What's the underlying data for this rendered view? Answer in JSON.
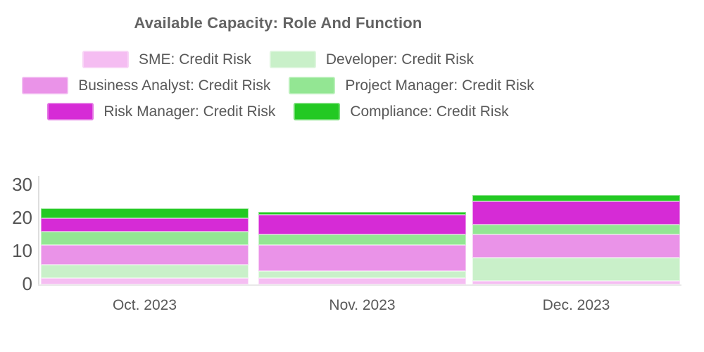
{
  "title": "Available Capacity: Role And Function",
  "text_colors": {
    "title": "#646464",
    "legend": "#585858",
    "axis": "#545454"
  },
  "chart_data": {
    "type": "bar",
    "stacked": true,
    "title": "Available Capacity: Role And Function",
    "categories": [
      "Oct. 2023",
      "Nov. 2023",
      "Dec. 2023"
    ],
    "series": [
      {
        "name": "SME: Credit Risk",
        "color": "#F5BDF2",
        "values": [
          2,
          2,
          1
        ]
      },
      {
        "name": "Developer: Credit Risk",
        "color": "#C9F0C9",
        "values": [
          4,
          2,
          7
        ]
      },
      {
        "name": "Business Analyst: Credit Risk",
        "color": "#EA93E8",
        "values": [
          6,
          8,
          7
        ]
      },
      {
        "name": "Project Manager: Credit Risk",
        "color": "#93E693",
        "values": [
          4,
          3,
          3
        ]
      },
      {
        "name": "Risk Manager: Credit Risk",
        "color": "#D62BD6",
        "values": [
          4,
          6,
          7
        ]
      },
      {
        "name": "Compliance: Credit Risk",
        "color": "#23C923",
        "values": [
          3,
          1,
          2
        ]
      }
    ],
    "totals": [
      23,
      22,
      27
    ],
    "stack_order_bottom_to_top": [
      "SME: Credit Risk",
      "Developer: Credit Risk",
      "Business Analyst: Credit Risk",
      "Project Manager: Credit Risk",
      "Risk Manager: Credit Risk",
      "Compliance: Credit Risk"
    ],
    "xlabel": "",
    "ylabel": "",
    "yticks": [
      0,
      10,
      20,
      30
    ],
    "ylim": [
      0,
      30
    ],
    "grid": false,
    "legend_position": "top",
    "legend_rows": [
      [
        0,
        1
      ],
      [
        2,
        3
      ],
      [
        4,
        5
      ]
    ]
  }
}
